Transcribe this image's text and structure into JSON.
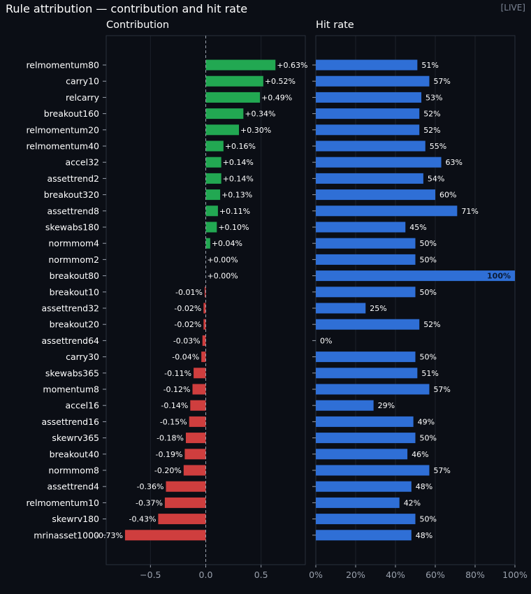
{
  "header": {
    "title": "Rule attribution — contribution and hit rate",
    "status": "[LIVE]"
  },
  "colors": {
    "background": "#0b0e15",
    "positive": "#22a852",
    "negative": "#cf3e3e",
    "hit_rate": "#2f6fd6",
    "grid": "#1c212b",
    "axis": "#2a303b"
  },
  "chart_data": [
    {
      "type": "bar",
      "orientation": "horizontal",
      "title": "Contribution",
      "xlim": [
        -0.9,
        0.9
      ],
      "x_ticks": [
        -0.5,
        0.0,
        0.5
      ],
      "x_tick_labels": [
        "−0.5",
        "0.0",
        "0.5"
      ],
      "grid": true,
      "zero_line": "dashed",
      "categories": [
        "relmomentum80",
        "carry10",
        "relcarry",
        "breakout160",
        "relmomentum20",
        "relmomentum40",
        "accel32",
        "assettrend2",
        "breakout320",
        "assettrend8",
        "skewabs180",
        "normmom4",
        "normmom2",
        "breakout80",
        "breakout10",
        "assettrend32",
        "breakout20",
        "assettrend64",
        "carry30",
        "skewabs365",
        "momentum8",
        "accel16",
        "assettrend16",
        "skewrv365",
        "breakout40",
        "normmom8",
        "assettrend4",
        "relmomentum10",
        "skewrv180",
        "mrinasset1000"
      ],
      "values": [
        0.63,
        0.52,
        0.49,
        0.34,
        0.3,
        0.16,
        0.14,
        0.14,
        0.13,
        0.11,
        0.1,
        0.04,
        0.0,
        0.0,
        -0.01,
        -0.02,
        -0.02,
        -0.03,
        -0.04,
        -0.11,
        -0.12,
        -0.14,
        -0.15,
        -0.18,
        -0.19,
        -0.2,
        -0.36,
        -0.37,
        -0.43,
        -0.73
      ],
      "data_labels": [
        "+0.63%",
        "+0.52%",
        "+0.49%",
        "+0.34%",
        "+0.30%",
        "+0.16%",
        "+0.14%",
        "+0.14%",
        "+0.13%",
        "+0.11%",
        "+0.10%",
        "+0.04%",
        "+0.00%",
        "+0.00%",
        "-0.01%",
        "-0.02%",
        "-0.02%",
        "-0.03%",
        "-0.04%",
        "-0.11%",
        "-0.12%",
        "-0.14%",
        "-0.15%",
        "-0.18%",
        "-0.19%",
        "-0.20%",
        "-0.36%",
        "-0.37%",
        "-0.43%",
        "-0.73%"
      ]
    },
    {
      "type": "bar",
      "orientation": "horizontal",
      "title": "Hit rate",
      "xlim": [
        0,
        100
      ],
      "x_ticks": [
        0,
        20,
        40,
        60,
        80,
        100
      ],
      "x_tick_labels": [
        "0%",
        "20%",
        "40%",
        "60%",
        "80%",
        "100%"
      ],
      "grid": true,
      "categories": [
        "relmomentum80",
        "carry10",
        "relcarry",
        "breakout160",
        "relmomentum20",
        "relmomentum40",
        "accel32",
        "assettrend2",
        "breakout320",
        "assettrend8",
        "skewabs180",
        "normmom4",
        "normmom2",
        "breakout80",
        "breakout10",
        "assettrend32",
        "breakout20",
        "assettrend64",
        "carry30",
        "skewabs365",
        "momentum8",
        "accel16",
        "assettrend16",
        "skewrv365",
        "breakout40",
        "normmom8",
        "assettrend4",
        "relmomentum10",
        "skewrv180",
        "mrinasset1000"
      ],
      "values": [
        51,
        57,
        53,
        52,
        52,
        55,
        63,
        54,
        60,
        71,
        45,
        50,
        50,
        100,
        50,
        25,
        52,
        0,
        50,
        51,
        57,
        29,
        49,
        50,
        46,
        57,
        48,
        42,
        50,
        48
      ],
      "data_labels": [
        "51%",
        "57%",
        "53%",
        "52%",
        "52%",
        "55%",
        "63%",
        "54%",
        "60%",
        "71%",
        "45%",
        "50%",
        "50%",
        "100%",
        "50%",
        "25%",
        "52%",
        "0%",
        "50%",
        "51%",
        "57%",
        "29%",
        "49%",
        "50%",
        "46%",
        "57%",
        "48%",
        "42%",
        "50%",
        "48%"
      ]
    }
  ]
}
